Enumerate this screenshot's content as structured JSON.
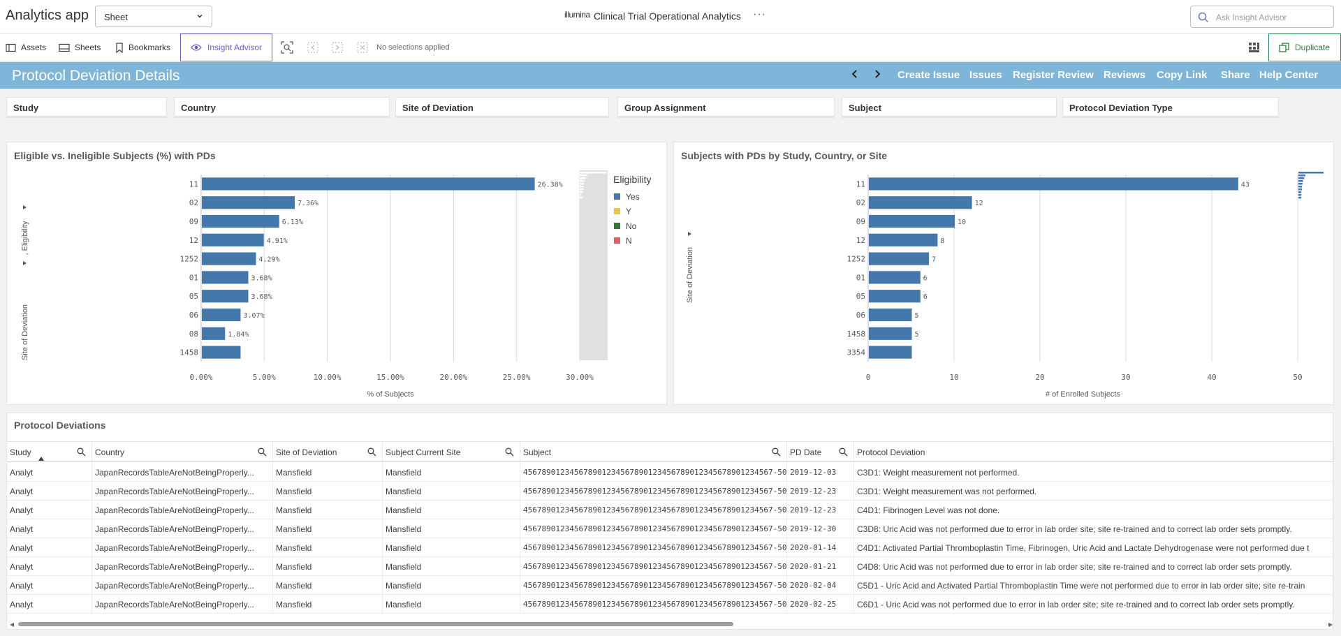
{
  "app": {
    "title": "Analytics app",
    "sheet_selector": "Sheet",
    "brand": "illumina",
    "center_title": "Clinical Trial Operational Analytics",
    "more": "···",
    "ask_placeholder": "Ask Insight Advisor"
  },
  "toolbar": {
    "assets": "Assets",
    "sheets": "Sheets",
    "bookmarks": "Bookmarks",
    "insight": "Insight Advisor",
    "no_selections": "No selections applied",
    "duplicate": "Duplicate"
  },
  "header": {
    "title": "Protocol Deviation Details",
    "prev": "‹",
    "next": "›",
    "links": [
      "Create Issue",
      "Issues",
      "Register Review",
      "Reviews",
      "Copy Link",
      "Share",
      "Help Center"
    ]
  },
  "filters": [
    "Study",
    "Country",
    "Site of Deviation",
    "Group Assignment",
    "Subject",
    "Protocol Deviation Type"
  ],
  "chart_data": [
    {
      "type": "bar",
      "orientation": "horizontal",
      "title": "Eligible vs. Ineligible Subjects (%) with PDs",
      "xlabel": "% of Subjects",
      "ylabel": "Site of Deviation",
      "ylabel2": ", Eligibility",
      "categories": [
        "11",
        "02",
        "09",
        "12",
        "1252",
        "01",
        "05",
        "06",
        "08",
        "1458"
      ],
      "values": [
        26.38,
        7.36,
        6.13,
        4.91,
        4.29,
        3.68,
        3.68,
        3.07,
        1.84,
        3.07
      ],
      "data_labels": [
        "26.38%",
        "7.36%",
        "6.13%",
        "4.91%",
        "4.29%",
        "3.68%",
        "3.68%",
        "3.07%",
        "1.84%",
        ""
      ],
      "xlim": [
        0,
        30
      ],
      "xticks": [
        "0.00%",
        "5.00%",
        "10.00%",
        "15.00%",
        "20.00%",
        "25.00%",
        "30.00%"
      ],
      "xtick_values": [
        0,
        5,
        10,
        15,
        20,
        25,
        30
      ],
      "grid": true,
      "legend_placement": "right",
      "legend_title": "Eligibility",
      "legend": [
        {
          "label": "Yes",
          "color": "#4477aa"
        },
        {
          "label": "Y",
          "color": "#e6c25b"
        },
        {
          "label": "No",
          "color": "#2e7d32"
        },
        {
          "label": "N",
          "color": "#d4636a"
        }
      ],
      "bar_color": "#4477aa"
    },
    {
      "type": "bar",
      "orientation": "horizontal",
      "title": "Subjects with PDs by Study, Country, or Site",
      "xlabel": "# of Enrolled Subjects",
      "ylabel": "Site of Deviation",
      "categories": [
        "11",
        "02",
        "09",
        "12",
        "1252",
        "01",
        "05",
        "06",
        "1458",
        "3354"
      ],
      "values": [
        43,
        12,
        10,
        8,
        7,
        6,
        6,
        5,
        5,
        5
      ],
      "data_labels": [
        "43",
        "12",
        "10",
        "8",
        "7",
        "6",
        "6",
        "5",
        "5",
        ""
      ],
      "xlim": [
        0,
        50
      ],
      "xticks": [
        "0",
        "10",
        "20",
        "30",
        "40",
        "50"
      ],
      "xtick_values": [
        0,
        10,
        20,
        30,
        40,
        50
      ],
      "grid": true,
      "bar_color": "#4477aa"
    }
  ],
  "table": {
    "title": "Protocol Deviations",
    "columns": [
      "Study",
      "Country",
      "Site of Deviation",
      "Subject Current Site",
      "Subject",
      "PD Date",
      "Protocol Deviation"
    ],
    "rows": [
      [
        "Analyt",
        "JapanRecordsTableAreNotBeingProperly...",
        "Mansfield",
        "Mansfield",
        "456789012345678901234567890123456789012345678901234567-50",
        "2019-12-03",
        "C3D1: Weight measurement not performed."
      ],
      [
        "Analyt",
        "JapanRecordsTableAreNotBeingProperly...",
        "Mansfield",
        "Mansfield",
        "456789012345678901234567890123456789012345678901234567-50",
        "2019-12-23",
        "C3D1: Weight measurement was not performed."
      ],
      [
        "Analyt",
        "JapanRecordsTableAreNotBeingProperly...",
        "Mansfield",
        "Mansfield",
        "456789012345678901234567890123456789012345678901234567-50",
        "2019-12-23",
        "C4D1: Fibrinogen Level was not done."
      ],
      [
        "Analyt",
        "JapanRecordsTableAreNotBeingProperly...",
        "Mansfield",
        "Mansfield",
        "456789012345678901234567890123456789012345678901234567-50",
        "2019-12-30",
        "C3D8: Uric Acid was not performed due to error in lab order site; site re-trained and to correct lab order sets promptly."
      ],
      [
        "Analyt",
        "JapanRecordsTableAreNotBeingProperly...",
        "Mansfield",
        "Mansfield",
        "456789012345678901234567890123456789012345678901234567-50",
        "2020-01-14",
        "C4D1: Activated Partial Thromboplastin Time, Fibrinogen, Uric Acid and Lactate Dehydrogenase were not performed due t"
      ],
      [
        "Analyt",
        "JapanRecordsTableAreNotBeingProperly...",
        "Mansfield",
        "Mansfield",
        "456789012345678901234567890123456789012345678901234567-50",
        "2020-01-21",
        "C4D8: Uric Acid was not performed due to error in lab order site; site re-trained and to correct lab order sets promptly."
      ],
      [
        "Analyt",
        "JapanRecordsTableAreNotBeingProperly...",
        "Mansfield",
        "Mansfield",
        "456789012345678901234567890123456789012345678901234567-50",
        "2020-02-04",
        "C5D1 - Uric Acid and Activated Partial Thromboplastin Time were not performed due to error in lab order site; site re-train"
      ],
      [
        "Analyt",
        "JapanRecordsTableAreNotBeingProperly...",
        "Mansfield",
        "Mansfield",
        "456789012345678901234567890123456789012345678901234567-50",
        "2020-02-25",
        "C6D1 - Uric Acid was not performed due to error in lab order site; site re-trained and to correct lab order sets promptly."
      ]
    ]
  }
}
